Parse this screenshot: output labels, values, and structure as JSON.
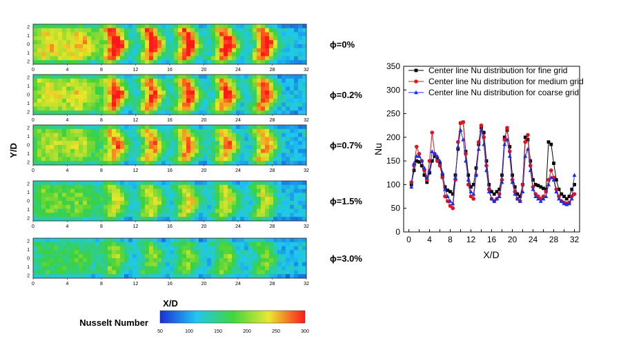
{
  "contours": {
    "y_axis_label": "Y/D",
    "x_axis_label": "X/D",
    "y_ticks": [
      "2",
      "1",
      "0",
      "1",
      "2"
    ],
    "x_ticks": [
      "0",
      "4",
      "8",
      "12",
      "16",
      "20",
      "24",
      "28",
      "32"
    ],
    "panels": [
      {
        "label": "ϕ=0%",
        "phi_percent": 0,
        "intensity": 1.0
      },
      {
        "label": "ϕ=0.2%",
        "phi_percent": 0.2,
        "intensity": 0.92
      },
      {
        "label": "ϕ=0.7%",
        "phi_percent": 0.7,
        "intensity": 0.8
      },
      {
        "label": "ϕ=1.5%",
        "phi_percent": 1.5,
        "intensity": 0.62
      },
      {
        "label": "ϕ=3.0%",
        "phi_percent": 3.0,
        "intensity": 0.45
      }
    ],
    "colorbar": {
      "title": "Nusselt Number",
      "ticks": [
        "50",
        "100",
        "150",
        "200",
        "250",
        "300"
      ],
      "range": [
        50,
        300
      ],
      "colors": [
        "#1a2fd8",
        "#22c6f0",
        "#3fd63f",
        "#e8e830",
        "#ff1a1a"
      ]
    }
  },
  "chart_data": {
    "type": "line",
    "xlabel": "X/D",
    "ylabel": "Nu",
    "xlim": [
      -1,
      33
    ],
    "ylim": [
      0,
      350
    ],
    "x_ticks": [
      "0",
      "2",
      "4",
      "6",
      "8",
      "10",
      "12",
      "14",
      "16",
      "18",
      "20",
      "22",
      "24",
      "26",
      "28",
      "30",
      "32"
    ],
    "y_ticks": [
      "0",
      "50",
      "100",
      "150",
      "200",
      "250",
      "300",
      "350"
    ],
    "legend_position": "top-right",
    "series": [
      {
        "name": "Center line Nu distribution for fine grid",
        "color": "#000000",
        "marker": "square",
        "x": [
          0.5,
          1,
          1.5,
          2,
          2.5,
          3,
          3.5,
          4,
          4.5,
          5,
          5.5,
          6,
          6.5,
          7,
          7.5,
          8,
          8.5,
          9,
          9.5,
          10,
          10.5,
          11,
          11.5,
          12,
          12.5,
          13,
          13.5,
          14,
          14.5,
          15,
          15.5,
          16,
          16.5,
          17,
          17.5,
          18,
          18.5,
          19,
          19.5,
          20,
          20.5,
          21,
          21.5,
          22,
          22.5,
          23,
          23.5,
          24,
          24.5,
          25,
          25.5,
          26,
          26.5,
          27,
          27.5,
          28,
          28.5,
          29,
          29.5,
          30,
          30.5,
          31,
          31.5,
          32
        ],
        "y": [
          100,
          130,
          150,
          148,
          140,
          120,
          105,
          125,
          150,
          160,
          155,
          145,
          120,
          95,
          88,
          85,
          80,
          120,
          175,
          230,
          232,
          170,
          120,
          95,
          100,
          135,
          185,
          220,
          210,
          150,
          100,
          85,
          80,
          85,
          90,
          120,
          200,
          215,
          180,
          120,
          95,
          80,
          75,
          100,
          200,
          195,
          150,
          110,
          100,
          98,
          95,
          92,
          90,
          190,
          185,
          145,
          110,
          90,
          80,
          75,
          70,
          75,
          90,
          100
        ]
      },
      {
        "name": "Center line Nu distribution for medium grid",
        "color": "#e8101c",
        "marker": "circle",
        "x": [
          0.5,
          1,
          1.5,
          2,
          2.5,
          3,
          3.5,
          4,
          4.5,
          5,
          5.5,
          6,
          6.5,
          7,
          7.5,
          8,
          8.5,
          9,
          9.5,
          10,
          10.5,
          11,
          11.5,
          12,
          12.5,
          13,
          13.5,
          14,
          14.5,
          15,
          15.5,
          16,
          16.5,
          17,
          17.5,
          18,
          18.5,
          19,
          19.5,
          20,
          20.5,
          21,
          21.5,
          22,
          22.5,
          23,
          23.5,
          24,
          24.5,
          25,
          25.5,
          26,
          26.5,
          27,
          27.5,
          28,
          28.5,
          29,
          29.5,
          30,
          30.5,
          31,
          31.5,
          32
        ],
        "y": [
          105,
          140,
          180,
          165,
          150,
          130,
          110,
          150,
          210,
          165,
          150,
          140,
          115,
          75,
          65,
          55,
          50,
          110,
          190,
          230,
          232,
          165,
          100,
          75,
          70,
          120,
          190,
          225,
          200,
          140,
          90,
          70,
          65,
          70,
          80,
          110,
          195,
          220,
          170,
          110,
          85,
          70,
          65,
          100,
          190,
          205,
          140,
          95,
          80,
          75,
          70,
          75,
          85,
          110,
          130,
          115,
          90,
          75,
          65,
          62,
          60,
          62,
          75,
          80
        ]
      },
      {
        "name": "Center line Nu distribution for coarse grid",
        "color": "#1a30e0",
        "marker": "triangle",
        "x": [
          0.5,
          1,
          1.5,
          2,
          2.5,
          3,
          3.5,
          4,
          4.5,
          5,
          5.5,
          6,
          6.5,
          7,
          7.5,
          8,
          8.5,
          9,
          9.5,
          10,
          10.5,
          11,
          11.5,
          12,
          12.5,
          13,
          13.5,
          14,
          14.5,
          15,
          15.5,
          16,
          16.5,
          17,
          17.5,
          18,
          18.5,
          19,
          19.5,
          20,
          20.5,
          21,
          21.5,
          22,
          22.5,
          23,
          23.5,
          24,
          24.5,
          25,
          25.5,
          26,
          26.5,
          27,
          27.5,
          28,
          28.5,
          29,
          29.5,
          30,
          30.5,
          31,
          31.5,
          32
        ],
        "y": [
          95,
          145,
          160,
          160,
          150,
          135,
          115,
          130,
          170,
          165,
          160,
          150,
          125,
          90,
          75,
          65,
          60,
          115,
          180,
          215,
          195,
          150,
          110,
          85,
          80,
          120,
          175,
          215,
          185,
          130,
          85,
          70,
          65,
          70,
          75,
          105,
          185,
          195,
          160,
          105,
          80,
          70,
          65,
          85,
          160,
          175,
          130,
          90,
          75,
          70,
          65,
          70,
          75,
          100,
          115,
          110,
          85,
          70,
          65,
          60,
          58,
          60,
          70,
          120
        ]
      }
    ]
  }
}
